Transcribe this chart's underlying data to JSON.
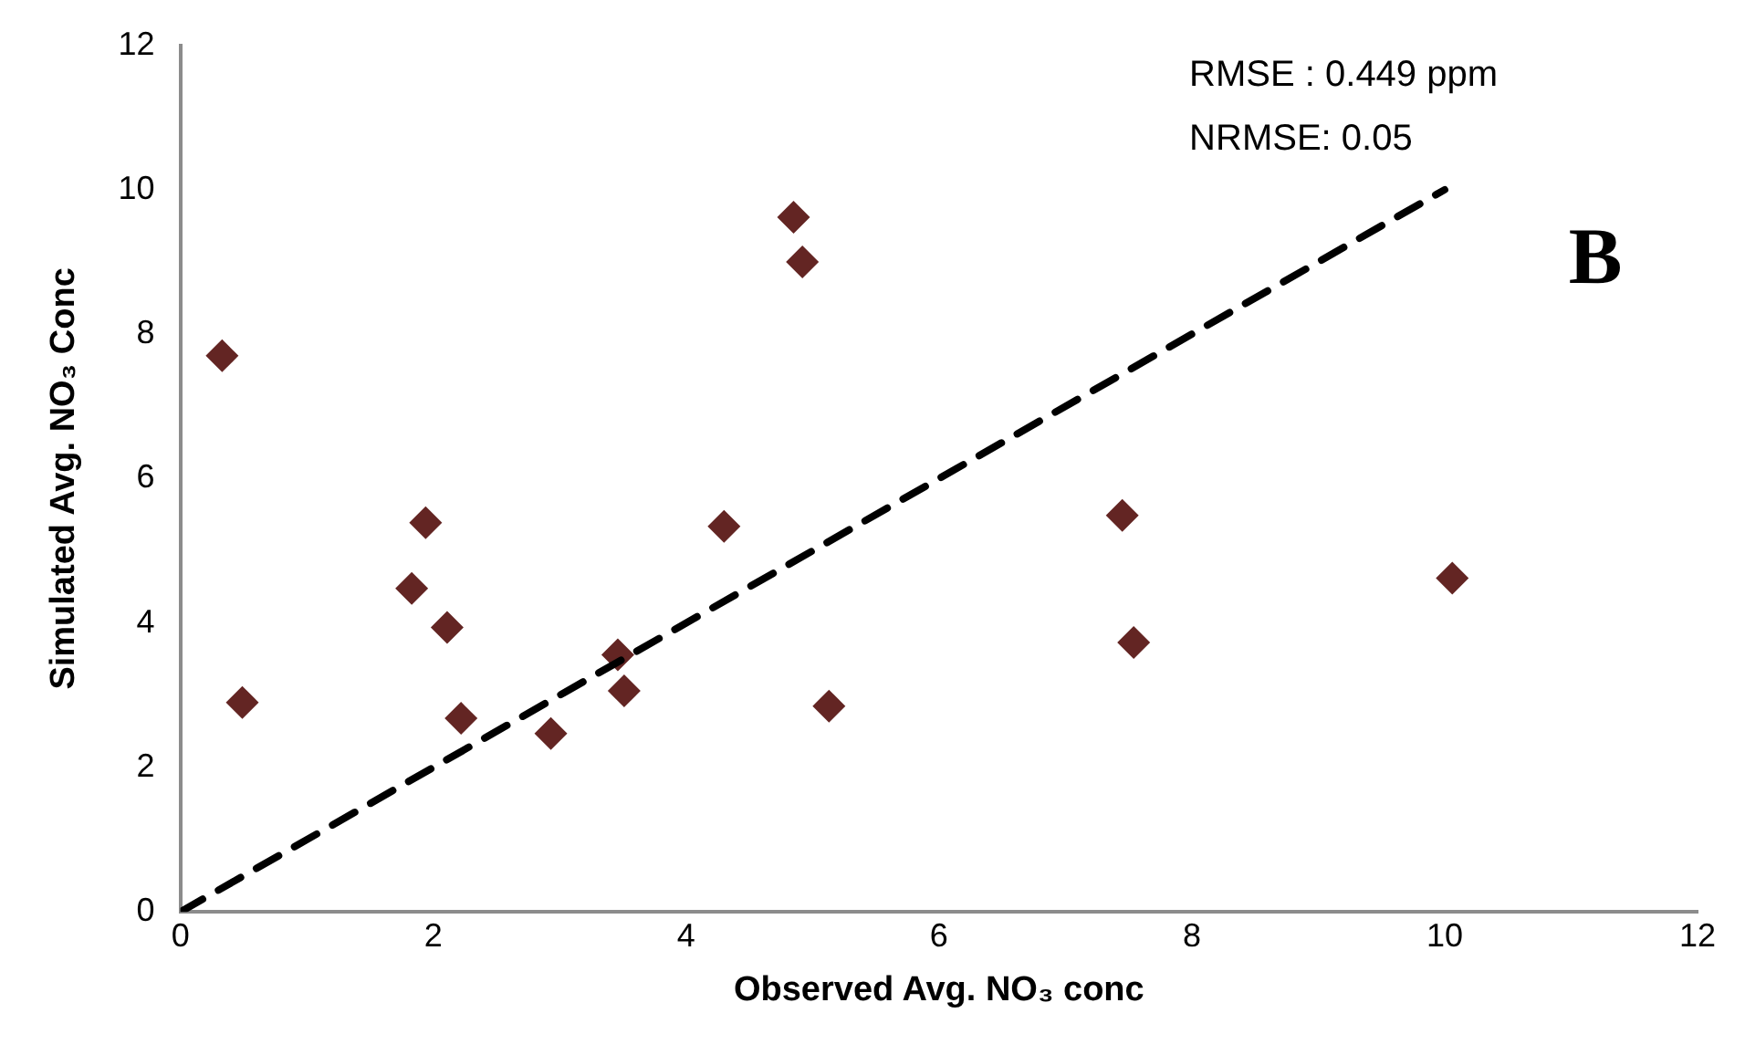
{
  "chart_data": {
    "type": "scatter",
    "xlabel": "Observed Avg. NO₃ conc",
    "ylabel": "Simulated Avg. NO₃ Conc",
    "annotations": [
      "RMSE : 0.449 ppm",
      "NRMSE: 0.05",
      "B"
    ],
    "xlim": [
      0,
      12
    ],
    "xticks": [
      0,
      2,
      4,
      6,
      8,
      10,
      12
    ],
    "ylim": [
      0,
      12
    ],
    "yticks": [
      0,
      2,
      4,
      6,
      8,
      10,
      12
    ],
    "grid": false,
    "legend": false,
    "series": [
      {
        "color": "#632523",
        "marker": "diamond",
        "x": [
          0.33,
          0.49,
          1.83,
          1.94,
          2.11,
          2.22,
          2.93,
          3.46,
          3.51,
          4.3,
          4.85,
          4.92,
          5.13,
          7.45,
          7.54,
          10.06
        ],
        "values": [
          7.7,
          2.9,
          4.48,
          5.39,
          3.94,
          2.68,
          2.47,
          3.56,
          3.06,
          5.34,
          9.62,
          9.0,
          2.85,
          5.49,
          3.73,
          4.62
        ]
      },
      {
        "type": "line",
        "color": "#000000",
        "marker": "none",
        "line_style": "dashed",
        "x": [
          0,
          10
        ],
        "values": [
          0,
          10
        ]
      }
    ]
  }
}
